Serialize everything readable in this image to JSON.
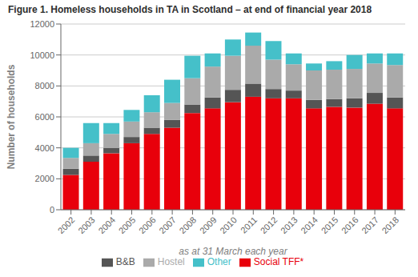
{
  "chart_data": {
    "type": "bar",
    "stacked": true,
    "title": "Figure 1. Homeless households in TA in Scotland – at end of financial year 2018",
    "xlabel": "as at 31 March each year",
    "ylabel": "Number of households",
    "categories": [
      "2002",
      "2003",
      "2004",
      "2005",
      "2006",
      "2007",
      "2008",
      "2009",
      "2010",
      "2011",
      "2012",
      "2013",
      "2014",
      "2015",
      "2016",
      "2017",
      "2018"
    ],
    "series": [
      {
        "name": "Social TFF*",
        "color": "#e8000b",
        "values": [
          2250,
          3100,
          3650,
          4300,
          4900,
          5300,
          6250,
          6550,
          6950,
          7300,
          7200,
          7200,
          6550,
          6650,
          6600,
          6850,
          6550
        ]
      },
      {
        "name": "B&B",
        "color": "#555555",
        "values": [
          400,
          400,
          350,
          400,
          400,
          500,
          550,
          700,
          800,
          850,
          600,
          500,
          550,
          500,
          600,
          700,
          700
        ]
      },
      {
        "name": "Hostel",
        "color": "#aaaaaa",
        "values": [
          700,
          800,
          900,
          1000,
          1000,
          1100,
          1700,
          2000,
          2200,
          2450,
          1900,
          1700,
          1900,
          1900,
          1900,
          1900,
          2100
        ]
      },
      {
        "name": "Other",
        "color": "#45c0c9",
        "values": [
          650,
          1300,
          700,
          750,
          1100,
          1500,
          1450,
          850,
          1050,
          850,
          1200,
          700,
          450,
          550,
          900,
          650,
          750
        ]
      }
    ],
    "ylim": [
      0,
      12000
    ],
    "yticks": [
      0,
      2000,
      4000,
      6000,
      8000,
      10000,
      12000
    ],
    "grid": true,
    "legend": "bottom"
  }
}
